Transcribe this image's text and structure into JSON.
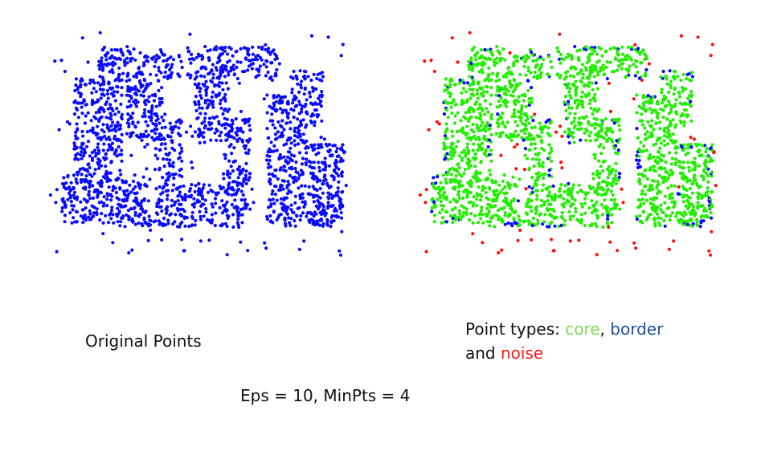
{
  "chart_data": [
    {
      "type": "scatter",
      "title": "Original Points",
      "colors": {
        "point": "#0a0aff"
      },
      "series": [
        {
          "points": "dense 2-D sample shaped like the glyphs 'C', 'S', 'S', 'G' with ~150 scattered background points"
        }
      ]
    },
    {
      "type": "scatter",
      "title": "Point types: core, border and noise",
      "colors": {
        "core": "#22ee00",
        "border": "#0a0aff",
        "noise": "#ff1010"
      },
      "series": [
        {
          "name": "core",
          "points": "dense interior of the glyph shapes"
        },
        {
          "name": "border",
          "points": "sparse points on the edges of the clusters"
        },
        {
          "name": "noise",
          "points": "isolated background points"
        }
      ]
    }
  ],
  "labels": {
    "original": "Original Points",
    "types_prefix": "Point types: ",
    "types_core": "core",
    "types_sep": ", ",
    "types_border": "border",
    "types_and": "and ",
    "types_noise": "noise",
    "params": "Eps = 10, MinPts = 4"
  }
}
